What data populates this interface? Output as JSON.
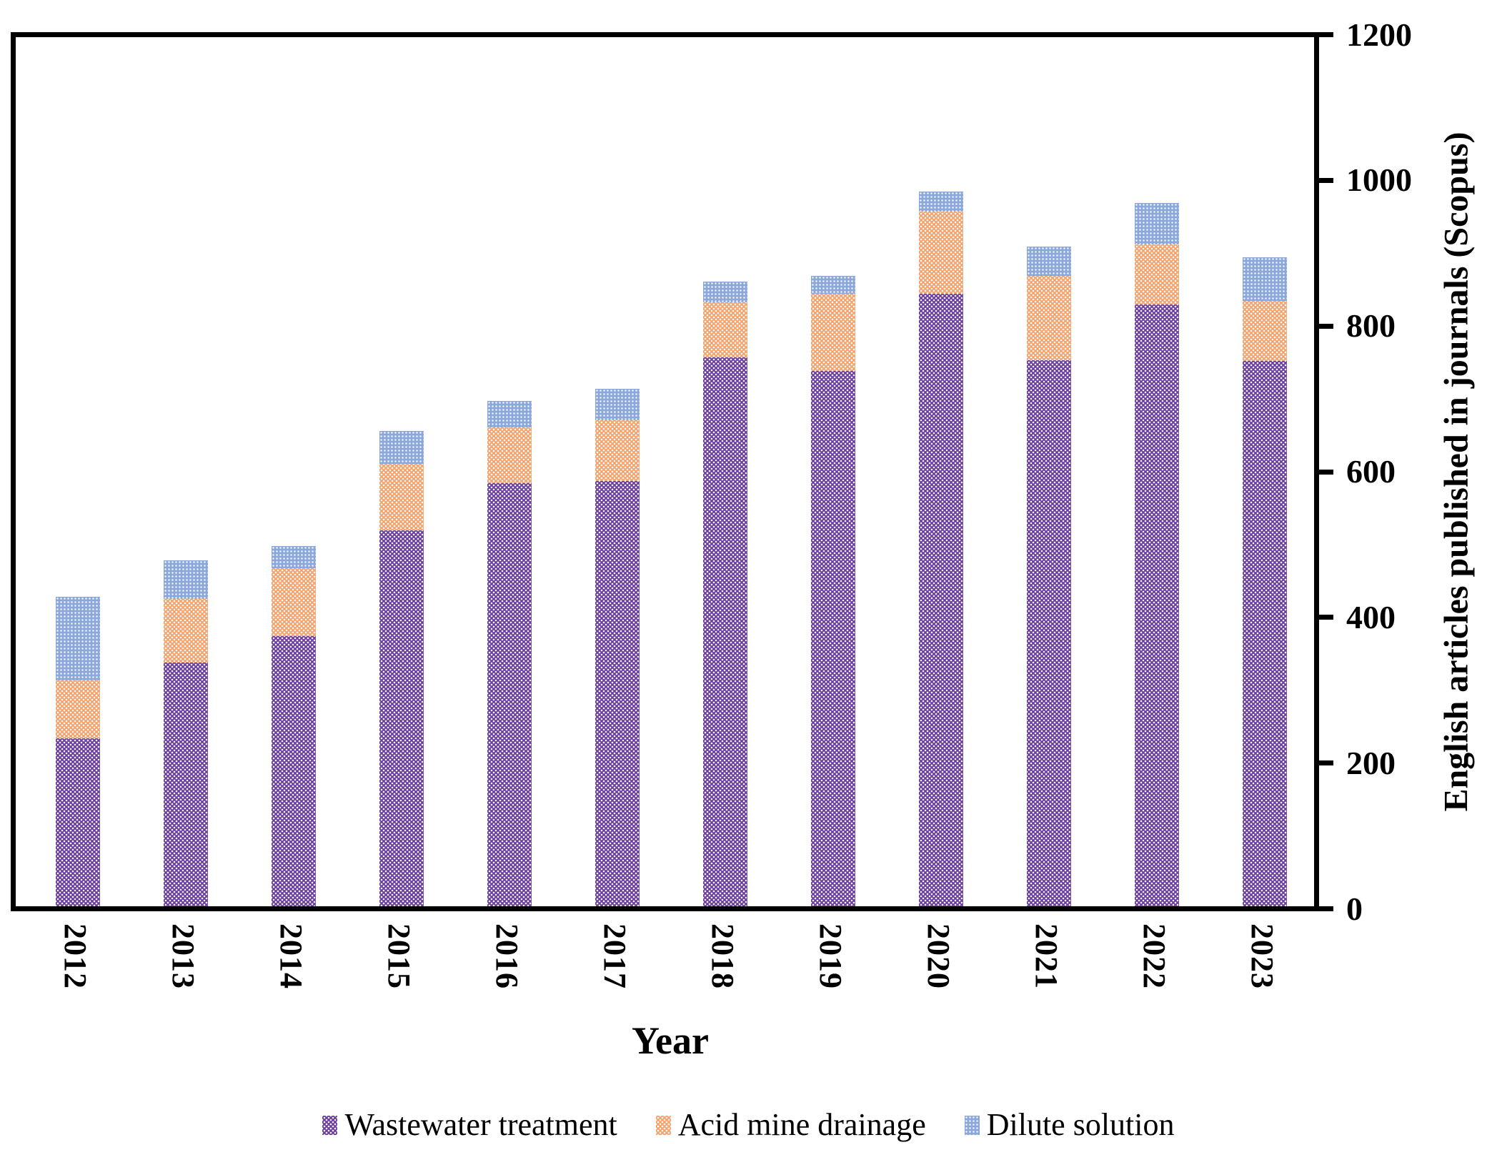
{
  "figure": {
    "background": "#ffffff",
    "axis_color": "#000000"
  },
  "chart_data": {
    "type": "bar",
    "stacked": true,
    "title": "",
    "xlabel": "Year",
    "ylabel": "English articles published in journals (Scopus)",
    "ylim": [
      0,
      1200
    ],
    "yticks": [
      0,
      200,
      400,
      600,
      800,
      1000,
      1200
    ],
    "y_axis_side": "right",
    "grid": false,
    "legend_position": "bottom",
    "categories": [
      "2012",
      "2013",
      "2014",
      "2015",
      "2016",
      "2017",
      "2018",
      "2019",
      "2020",
      "2021",
      "2022",
      "2023"
    ],
    "series": [
      {
        "name": "Wastewater treatment",
        "color": "#6b3fa0",
        "values": [
          232,
          337,
          373,
          519,
          584,
          587,
          758,
          739,
          846,
          754,
          831,
          753
        ]
      },
      {
        "name": "Acid mine drainage",
        "color": "#f2a36e",
        "values": [
          80,
          88,
          94,
          92,
          77,
          84,
          76,
          107,
          113,
          116,
          83,
          83
        ]
      },
      {
        "name": "Dilute solution",
        "color": "#8ca8db",
        "values": [
          115,
          53,
          31,
          45,
          37,
          43,
          29,
          25,
          28,
          40,
          57,
          60
        ]
      }
    ],
    "totals": [
      427,
      478,
      498,
      656,
      698,
      714,
      863,
      871,
      987,
      910,
      971,
      896
    ]
  }
}
